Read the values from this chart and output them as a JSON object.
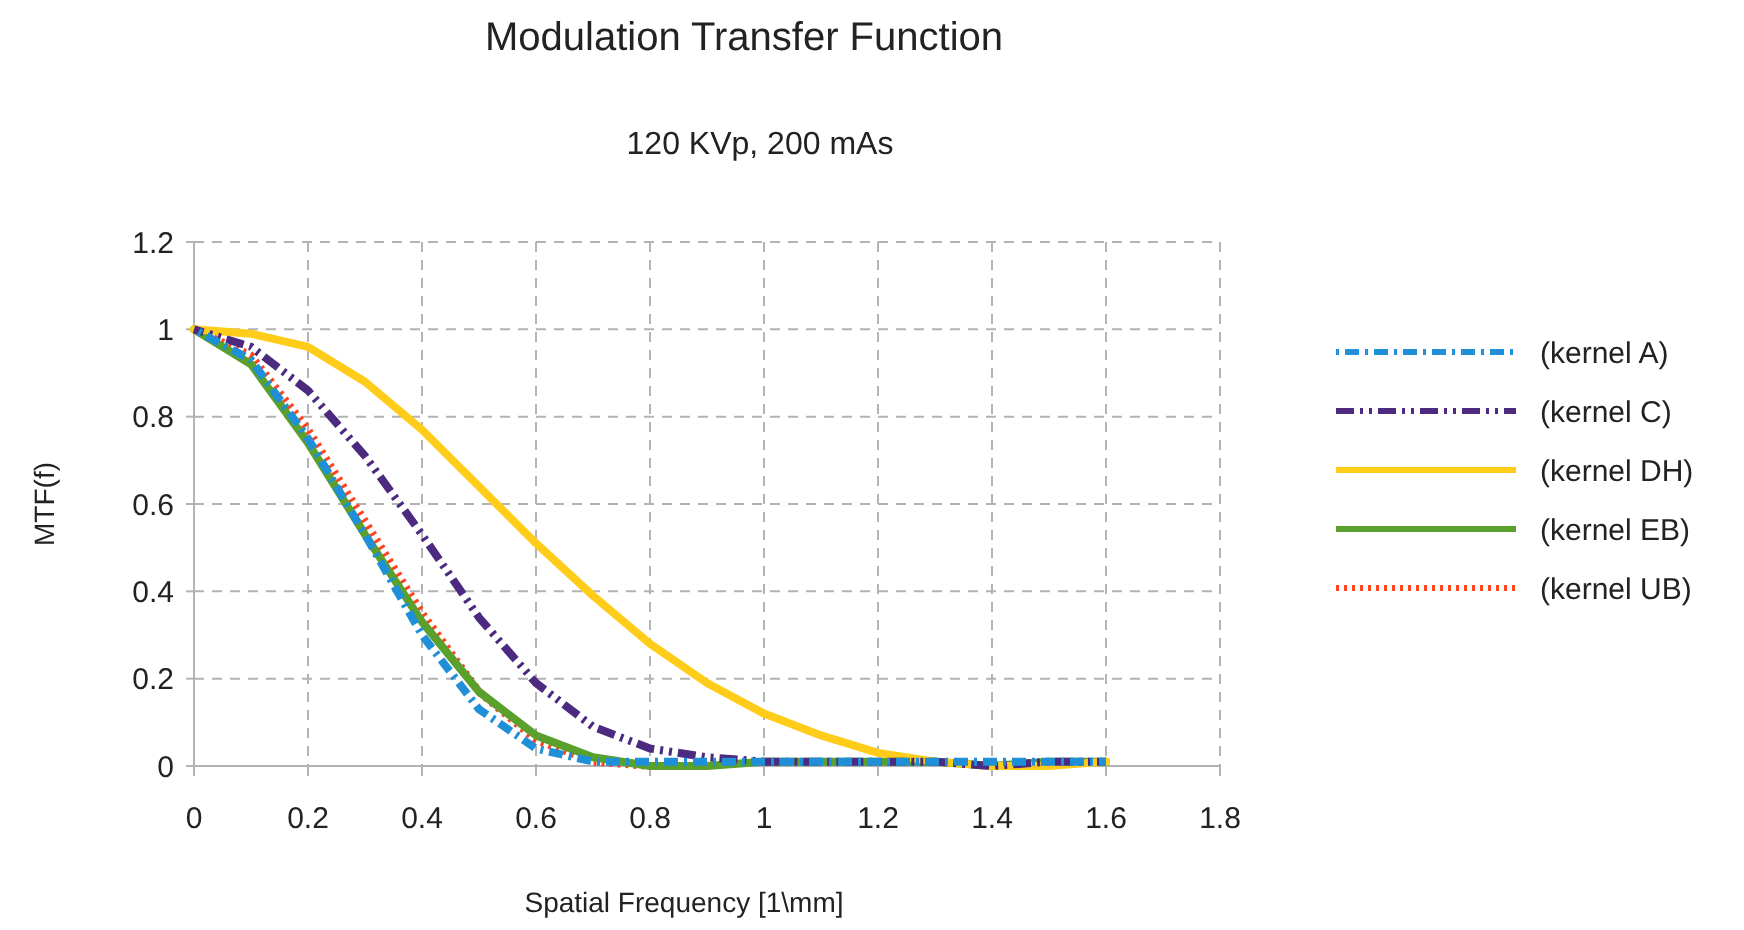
{
  "chart_data": {
    "type": "line",
    "title": "Modulation Transfer Function",
    "subtitle": "120 KVp, 200 mAs",
    "xlabel": "Spatial Frequency [1\\mm]",
    "ylabel": "MTF(f)",
    "x": [
      0,
      0.1,
      0.2,
      0.3,
      0.4,
      0.5,
      0.6,
      0.7,
      0.8,
      0.9,
      1,
      1.1,
      1.2,
      1.3,
      1.4,
      1.5,
      1.6
    ],
    "series": [
      {
        "name": "(kernel A)",
        "color": "#1f8fd8",
        "line_style": "dashdot",
        "values": [
          1,
          0.93,
          0.75,
          0.53,
          0.3,
          0.13,
          0.04,
          0.01,
          0.01,
          0.01,
          0.01,
          0.01,
          0.01,
          0.01,
          0.01,
          0.01,
          0.01
        ]
      },
      {
        "name": "(kernel C)",
        "color": "#4b2a7f",
        "line_style": "dashdotdot",
        "values": [
          1,
          0.96,
          0.86,
          0.71,
          0.53,
          0.34,
          0.19,
          0.09,
          0.04,
          0.02,
          0.01,
          0.01,
          0.01,
          0.01,
          0,
          0.01,
          0.01
        ]
      },
      {
        "name": "(kernel DH)",
        "color": "#ffcc1a",
        "line_style": "solid",
        "values": [
          1,
          0.99,
          0.96,
          0.88,
          0.77,
          0.64,
          0.51,
          0.39,
          0.28,
          0.19,
          0.12,
          0.07,
          0.03,
          0.01,
          0,
          0,
          0.01
        ]
      },
      {
        "name": "(kernel EB)",
        "color": "#5aa02c",
        "line_style": "solid",
        "values": [
          1,
          0.92,
          0.74,
          0.53,
          0.33,
          0.17,
          0.07,
          0.02,
          0,
          0,
          0.01,
          0.01,
          0.01,
          0.01,
          0,
          0.01,
          0.01
        ]
      },
      {
        "name": "(kernel UB)",
        "color": "#ff4422",
        "line_style": "dotted",
        "values": [
          1,
          0.94,
          0.77,
          0.56,
          0.35,
          0.17,
          0.06,
          0.01,
          0,
          0,
          null,
          null,
          null,
          null,
          null,
          null,
          null
        ]
      }
    ],
    "xlim": [
      0,
      1.8
    ],
    "xticks": [
      0,
      0.2,
      0.4,
      0.6,
      0.8,
      1,
      1.2,
      1.4,
      1.6,
      1.8
    ],
    "ylim": [
      0,
      1.2
    ],
    "yticks": [
      0,
      0.2,
      0.4,
      0.6,
      0.8,
      1,
      1.2
    ],
    "grid": true,
    "legend": "right"
  }
}
